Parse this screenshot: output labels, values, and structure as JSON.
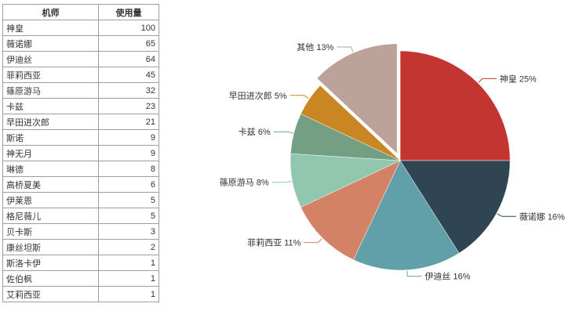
{
  "table": {
    "headers": [
      "机师",
      "使用量"
    ],
    "rows": [
      [
        "神皇",
        "100"
      ],
      [
        "薇诺娜",
        "65"
      ],
      [
        "伊迪丝",
        "64"
      ],
      [
        "菲莉西亚",
        "45"
      ],
      [
        "篠原游马",
        "32"
      ],
      [
        "卡兹",
        "23"
      ],
      [
        "早田进次郎",
        "21"
      ],
      [
        "斯诺",
        "9"
      ],
      [
        "神无月",
        "9"
      ],
      [
        "琳德",
        "8"
      ],
      [
        "高桥夏美",
        "6"
      ],
      [
        "伊莱恩",
        "5"
      ],
      [
        "格尼薇儿",
        "5"
      ],
      [
        "贝卡斯",
        "3"
      ],
      [
        "康丝坦斯",
        "2"
      ],
      [
        "斯洛卡伊",
        "1"
      ],
      [
        "佐伯枫",
        "1"
      ],
      [
        "艾莉西亚",
        "1"
      ]
    ]
  },
  "chart_data": {
    "type": "pie",
    "slices": [
      {
        "label": "神皇 25%",
        "value": 25,
        "color": "#c23531"
      },
      {
        "label": "薇诺娜 16%",
        "value": 16,
        "color": "#2f4554"
      },
      {
        "label": "伊迪丝 16%",
        "value": 16,
        "color": "#61a0a8"
      },
      {
        "label": "菲莉西亚 11%",
        "value": 11,
        "color": "#d48265"
      },
      {
        "label": "篠原游马 8%",
        "value": 8,
        "color": "#91c7ae"
      },
      {
        "label": "卡兹 6%",
        "value": 6,
        "color": "#749f83"
      },
      {
        "label": "早田进次郎 5%",
        "value": 5,
        "color": "#ca8622"
      },
      {
        "label": "其他 13%",
        "value": 13,
        "color": "#bda29a",
        "exploded": true
      }
    ]
  }
}
